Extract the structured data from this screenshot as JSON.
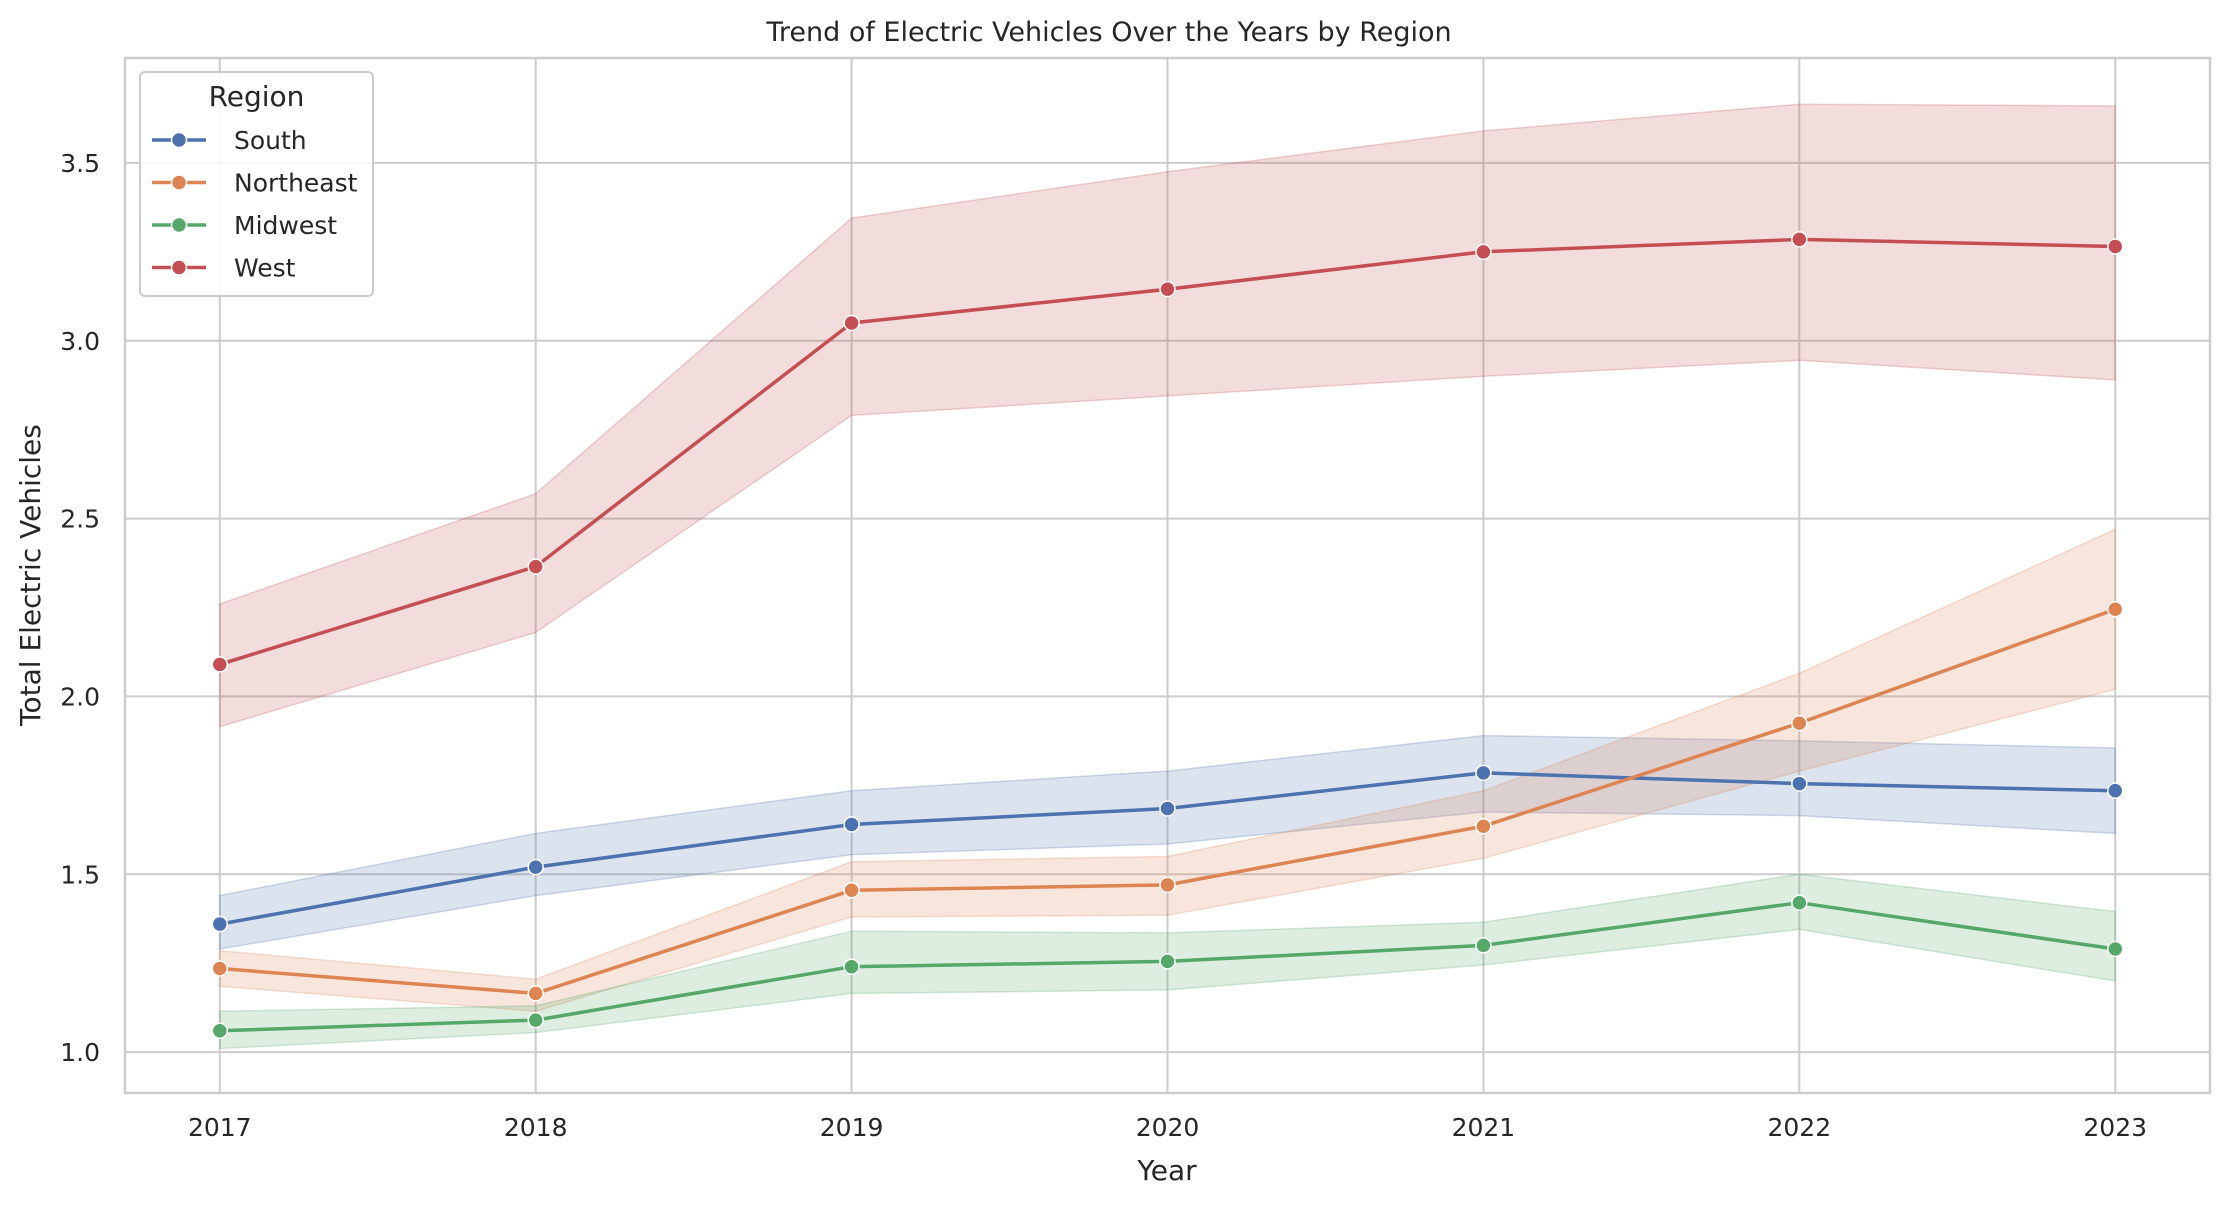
{
  "chart_data": {
    "type": "line",
    "title": "Trend of Electric Vehicles Over the Years by Region",
    "xlabel": "Year",
    "ylabel": "Total Electric Vehicles",
    "x": [
      2017,
      2018,
      2019,
      2020,
      2021,
      2022,
      2023
    ],
    "x_tick_labels": [
      "2017",
      "2018",
      "2019",
      "2020",
      "2021",
      "2022",
      "2023"
    ],
    "xlim": [
      2016.7,
      2023.3
    ],
    "ylim": [
      0.885,
      3.795
    ],
    "y_ticks": [
      1.0,
      1.5,
      2.0,
      2.5,
      3.0,
      3.5
    ],
    "y_tick_labels": [
      "1.0",
      "1.5",
      "2.0",
      "2.5",
      "3.0",
      "3.5"
    ],
    "grid": true,
    "legend": {
      "title": "Region",
      "position": "top-left"
    },
    "series": [
      {
        "name": "South",
        "color": "#4c72b0",
        "values": [
          1.36,
          1.52,
          1.64,
          1.685,
          1.785,
          1.755,
          1.735
        ],
        "ci_low": [
          1.29,
          1.44,
          1.555,
          1.585,
          1.675,
          1.665,
          1.615
        ],
        "ci_high": [
          1.44,
          1.615,
          1.735,
          1.79,
          1.89,
          1.875,
          1.855
        ]
      },
      {
        "name": "Northeast",
        "color": "#dd8452",
        "values": [
          1.235,
          1.165,
          1.455,
          1.47,
          1.635,
          1.925,
          2.245
        ],
        "ci_low": [
          1.185,
          1.115,
          1.38,
          1.385,
          1.545,
          1.79,
          2.02
        ],
        "ci_high": [
          1.285,
          1.205,
          1.535,
          1.55,
          1.735,
          2.065,
          2.47
        ]
      },
      {
        "name": "Midwest",
        "color": "#55a868",
        "values": [
          1.06,
          1.09,
          1.24,
          1.255,
          1.3,
          1.42,
          1.29
        ],
        "ci_low": [
          1.01,
          1.055,
          1.165,
          1.175,
          1.245,
          1.345,
          1.2
        ],
        "ci_high": [
          1.115,
          1.13,
          1.34,
          1.335,
          1.365,
          1.5,
          1.395
        ]
      },
      {
        "name": "West",
        "color": "#c44e52",
        "values": [
          2.09,
          2.365,
          3.05,
          3.145,
          3.25,
          3.285,
          3.265
        ],
        "ci_low": [
          1.915,
          2.18,
          2.79,
          2.845,
          2.9,
          2.945,
          2.89
        ],
        "ci_high": [
          2.26,
          2.57,
          3.345,
          3.475,
          3.59,
          3.665,
          3.66
        ]
      }
    ]
  }
}
